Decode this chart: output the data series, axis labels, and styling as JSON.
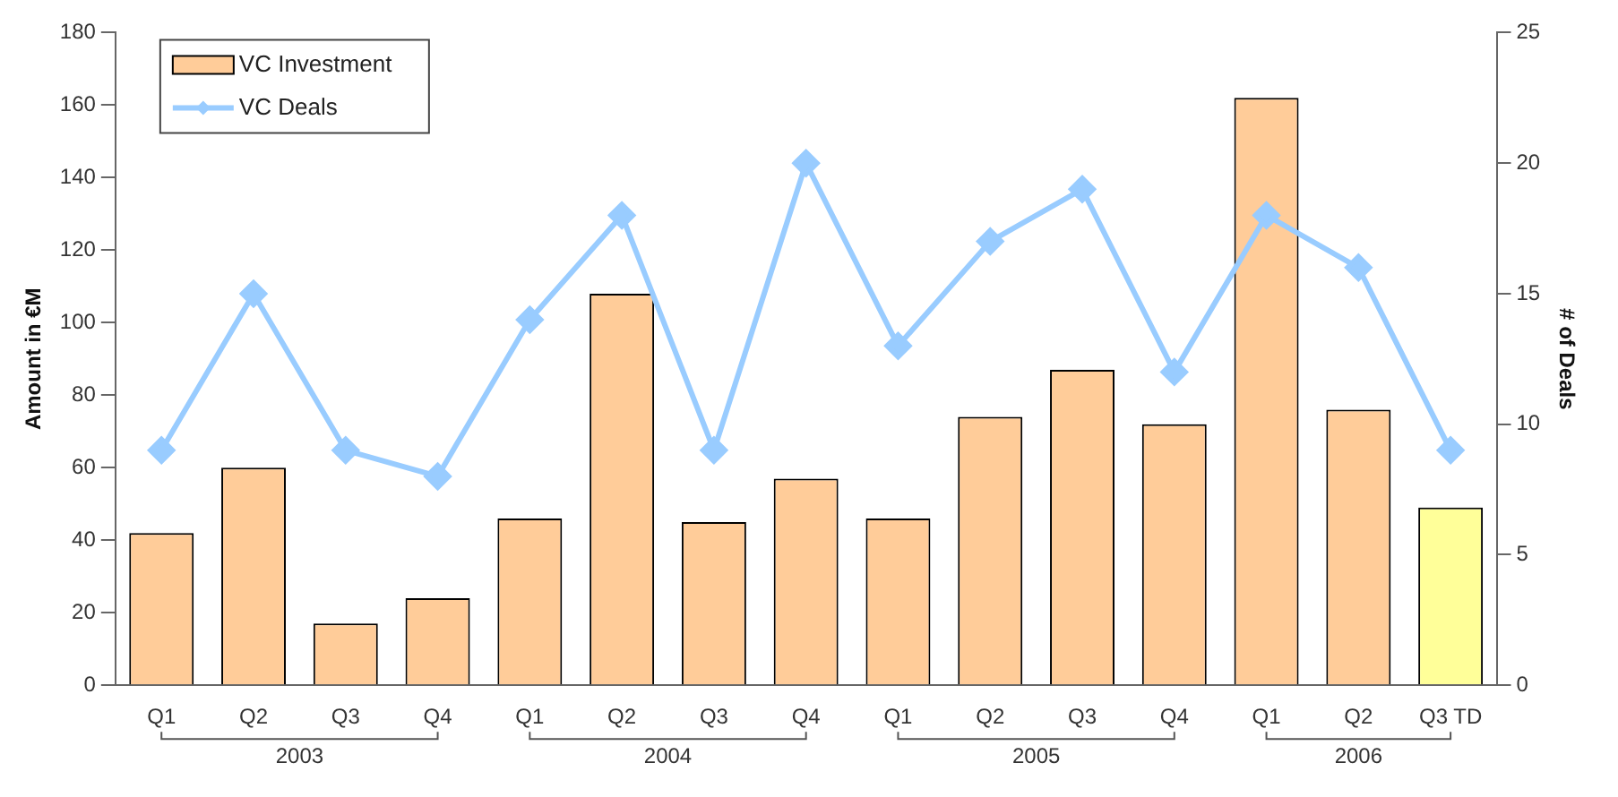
{
  "chart_data": {
    "type": "bar",
    "categories": [
      "Q1",
      "Q2",
      "Q3",
      "Q4",
      "Q1",
      "Q2",
      "Q3",
      "Q4",
      "Q1",
      "Q2",
      "Q3",
      "Q4",
      "Q1",
      "Q2",
      "Q3 TD"
    ],
    "series": [
      {
        "name": "VC Investment",
        "color": "#ffcc99",
        "colors": [
          "#ffcc99",
          "#ffcc99",
          "#ffcc99",
          "#ffcc99",
          "#ffcc99",
          "#ffcc99",
          "#ffcc99",
          "#ffcc99",
          "#ffcc99",
          "#ffcc99",
          "#ffcc99",
          "#ffcc99",
          "#ffcc99",
          "#ffcc99",
          "#ffff99"
        ],
        "values": [
          42,
          60,
          17,
          24,
          46,
          108,
          45,
          57,
          46,
          74,
          87,
          72,
          162,
          76,
          49
        ]
      },
      {
        "name": "VC Deals",
        "type": "line",
        "axis": "y2",
        "color": "#99ccff",
        "marker": "diamond",
        "values": [
          9,
          15,
          9,
          8,
          14,
          18,
          9,
          20,
          13,
          17,
          19,
          12,
          18,
          16,
          9
        ]
      }
    ],
    "ylabel": "Amount in €M",
    "y2label": "# of Deals",
    "ylim": [
      0,
      180
    ],
    "yticks": [
      0,
      20,
      40,
      60,
      80,
      100,
      120,
      140,
      160,
      180
    ],
    "y2lim": [
      0,
      25
    ],
    "y2ticks": [
      0,
      5,
      10,
      15,
      20,
      25
    ],
    "annotations": [
      "2003",
      "2004",
      "2005",
      "2006"
    ],
    "legend": "top left",
    "grid": false
  }
}
